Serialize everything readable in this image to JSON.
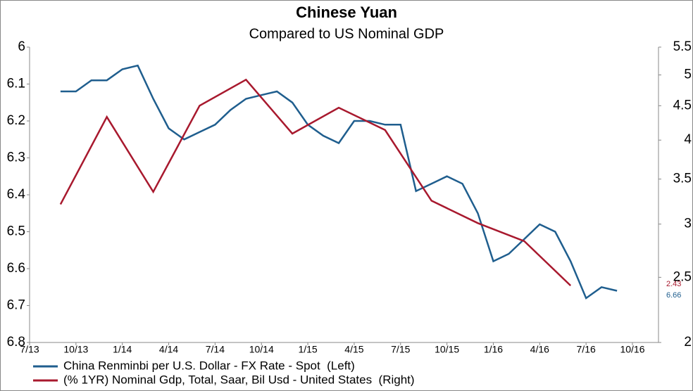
{
  "chart_data": {
    "type": "line",
    "title": "Chinese Yuan",
    "subtitle": "Compared to US Nominal GDP",
    "xlim": [
      "7/13",
      "10/16"
    ],
    "xticks": [
      "7/13",
      "10/13",
      "1/14",
      "4/14",
      "7/14",
      "10/14",
      "1/15",
      "4/15",
      "7/15",
      "10/15",
      "1/16",
      "4/16",
      "7/16",
      "10/16"
    ],
    "ylim": [
      6,
      6.8
    ],
    "y_reversed": true,
    "yticks": [
      6,
      6.1,
      6.2,
      6.3,
      6.4,
      6.5,
      6.6,
      6.7,
      6.8
    ],
    "y2lim": [
      2,
      5.5
    ],
    "y2_log": true,
    "y2ticks": [
      2,
      2.5,
      3,
      3.5,
      4,
      4.5,
      5,
      5.5
    ],
    "grid": false,
    "legend": "bottom",
    "series": [
      {
        "name": "China Renminbi per U.S. Dollar - FX Rate - Spot  (Left)",
        "color": "#1f5e8e",
        "x": [
          "9/13",
          "10/13",
          "11/13",
          "12/13",
          "1/14",
          "2/14",
          "3/14",
          "4/14",
          "5/14",
          "6/14",
          "7/14",
          "8/14",
          "9/14",
          "10/14",
          "11/14",
          "12/14",
          "1/15",
          "2/15",
          "3/15",
          "4/15",
          "5/15",
          "6/15",
          "7/15",
          "8/15",
          "9/15",
          "10/15",
          "11/15",
          "12/15",
          "1/16",
          "2/16",
          "3/16",
          "4/16",
          "5/16",
          "6/16",
          "7/16",
          "8/16",
          "9/16"
        ],
        "values": [
          6.12,
          6.12,
          6.09,
          6.09,
          6.06,
          6.05,
          6.14,
          6.22,
          6.25,
          6.23,
          6.21,
          6.17,
          6.14,
          6.13,
          6.12,
          6.15,
          6.21,
          6.24,
          6.26,
          6.2,
          6.2,
          6.21,
          6.21,
          6.39,
          6.37,
          6.35,
          6.37,
          6.45,
          6.58,
          6.56,
          6.52,
          6.48,
          6.5,
          6.58,
          6.68,
          6.65,
          6.66
        ]
      },
      {
        "name": "(% 1YR) Nominal Gdp, Total, Saar, Bil Usd - United States  (Right)",
        "color": "#a8192e",
        "axis": "y2",
        "x": [
          "9/13",
          "12/13",
          "3/14",
          "6/14",
          "9/14",
          "12/14",
          "3/15",
          "6/15",
          "9/15",
          "12/15",
          "3/16",
          "6/16"
        ],
        "values": [
          3.21,
          4.33,
          3.35,
          4.5,
          4.92,
          4.09,
          4.47,
          4.14,
          3.25,
          3.01,
          2.83,
          2.43
        ]
      }
    ]
  }
}
